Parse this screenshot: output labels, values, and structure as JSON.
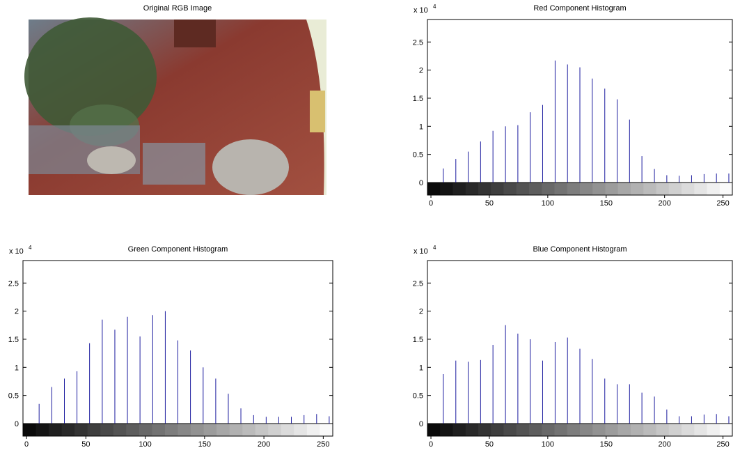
{
  "image": {
    "title": "Original RGB Image"
  },
  "chart_data": [
    {
      "type": "stem",
      "title": "Red Component Histogram",
      "multiplier": "x 10",
      "multiplier_exponent": "4",
      "color": "#1a1a9e",
      "x": [
        10.6,
        21.3,
        31.9,
        42.5,
        53.1,
        63.8,
        74.4,
        85,
        95.6,
        106.3,
        116.9,
        127.5,
        138.1,
        148.8,
        159.4,
        170,
        180.6,
        191.3,
        201.9,
        212.5,
        223.1,
        233.8,
        244.4,
        255
      ],
      "values": [
        0.25,
        0.42,
        0.55,
        0.73,
        0.92,
        1.0,
        1.02,
        1.25,
        1.38,
        2.17,
        2.1,
        2.05,
        1.85,
        1.67,
        1.48,
        1.12,
        0.47,
        0.24,
        0.13,
        0.12,
        0.13,
        0.15,
        0.16,
        0.16
      ],
      "xlim": [
        -3,
        258
      ],
      "xticks": [
        0,
        50,
        100,
        150,
        200,
        250
      ],
      "ylim": [
        0,
        2.9
      ],
      "yticks": [
        0,
        0.5,
        1,
        1.5,
        2,
        2.5
      ]
    },
    {
      "type": "stem",
      "title": "Green Component Histogram",
      "multiplier": "x 10",
      "multiplier_exponent": "4",
      "color": "#1a1a9e",
      "x": [
        10.6,
        21.3,
        31.9,
        42.5,
        53.1,
        63.8,
        74.4,
        85,
        95.6,
        106.3,
        116.9,
        127.5,
        138.1,
        148.8,
        159.4,
        170,
        180.6,
        191.3,
        201.9,
        212.5,
        223.1,
        233.8,
        244.4,
        255
      ],
      "values": [
        0.35,
        0.65,
        0.8,
        0.93,
        1.43,
        1.85,
        1.67,
        1.9,
        1.55,
        1.93,
        2.0,
        1.48,
        1.3,
        1.0,
        0.8,
        0.53,
        0.27,
        0.15,
        0.12,
        0.12,
        0.12,
        0.15,
        0.17,
        0.13
      ],
      "xlim": [
        -3,
        258
      ],
      "xticks": [
        0,
        50,
        100,
        150,
        200,
        250
      ],
      "ylim": [
        0,
        2.9
      ],
      "yticks": [
        0,
        0.5,
        1,
        1.5,
        2,
        2.5
      ]
    },
    {
      "type": "stem",
      "title": "Blue Component Histogram",
      "multiplier": "x 10",
      "multiplier_exponent": "4",
      "color": "#1a1a9e",
      "x": [
        10.6,
        21.3,
        31.9,
        42.5,
        53.1,
        63.8,
        74.4,
        85,
        95.6,
        106.3,
        116.9,
        127.5,
        138.1,
        148.8,
        159.4,
        170,
        180.6,
        191.3,
        201.9,
        212.5,
        223.1,
        233.8,
        244.4,
        255
      ],
      "values": [
        0.88,
        1.12,
        1.1,
        1.13,
        1.4,
        1.75,
        1.6,
        1.5,
        1.12,
        1.45,
        1.53,
        1.33,
        1.15,
        0.8,
        0.7,
        0.7,
        0.55,
        0.48,
        0.25,
        0.13,
        0.13,
        0.16,
        0.17,
        0.13
      ],
      "xlim": [
        -3,
        258
      ],
      "xticks": [
        0,
        50,
        100,
        150,
        200,
        250
      ],
      "ylim": [
        0,
        2.9
      ],
      "yticks": [
        0,
        0.5,
        1,
        1.5,
        2,
        2.5
      ]
    }
  ]
}
